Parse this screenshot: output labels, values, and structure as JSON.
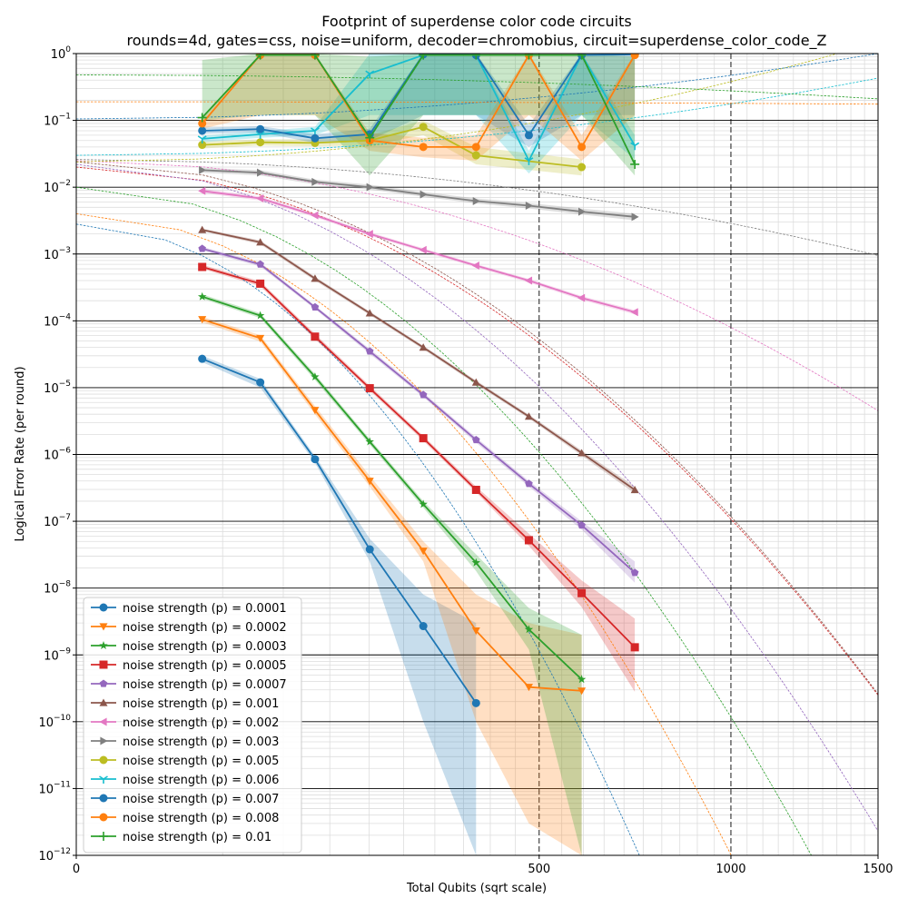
{
  "chart_data": {
    "type": "line",
    "title": "Footprint of superdense color code circuits",
    "subtitle": "rounds=4d, gates=css, noise=uniform, decoder=chromobius, circuit=superdense_color_code_Z",
    "xlabel": "Total Qubits (sqrt scale)",
    "ylabel": "Logical Error Rate (per round)",
    "xscale": "sqrt",
    "yscale": "log",
    "xlim": [
      0,
      1500
    ],
    "ylim": [
      1e-12,
      1
    ],
    "x_ticks": [
      {
        "value": 0,
        "label": "0"
      },
      {
        "value": 500,
        "label": "500"
      },
      {
        "value": 1000,
        "label": "1000"
      },
      {
        "value": 1500,
        "label": "1500"
      }
    ],
    "y_ticks": [
      {
        "exp": 0,
        "base": "10",
        "sup": "0"
      },
      {
        "exp": -1,
        "base": "10",
        "sup": "−1"
      },
      {
        "exp": -2,
        "base": "10",
        "sup": "−2"
      },
      {
        "exp": -3,
        "base": "10",
        "sup": "−3"
      },
      {
        "exp": -4,
        "base": "10",
        "sup": "−4"
      },
      {
        "exp": -5,
        "base": "10",
        "sup": "−5"
      },
      {
        "exp": -6,
        "base": "10",
        "sup": "−6"
      },
      {
        "exp": -7,
        "base": "10",
        "sup": "−7"
      },
      {
        "exp": -8,
        "base": "10",
        "sup": "−8"
      },
      {
        "exp": -9,
        "base": "10",
        "sup": "−9"
      },
      {
        "exp": -10,
        "base": "10",
        "sup": "−10"
      },
      {
        "exp": -11,
        "base": "10",
        "sup": "−11"
      },
      {
        "exp": -12,
        "base": "10",
        "sup": "−12"
      }
    ],
    "grid": true,
    "legend_position": "lower-left",
    "x": [
      37,
      79,
      133,
      201,
      281,
      373,
      478,
      596,
      728
    ],
    "series": [
      {
        "name": "noise strength (p) = 0.0001",
        "color": "#1f77b4",
        "marker": "circle",
        "values": [
          2.7e-05,
          1.2e-05,
          8.5e-07,
          3.8e-08,
          2.7e-09,
          1.9e-10,
          null,
          null,
          null
        ],
        "lower": [
          2.4e-05,
          1e-05,
          7.5e-07,
          2.5e-08,
          1e-10,
          1e-12,
          null,
          null,
          null
        ],
        "upper": [
          3e-05,
          1.35e-05,
          9.5e-07,
          5.5e-08,
          8e-09,
          3e-09,
          null,
          null,
          null
        ],
        "fit": [
          [
            0,
            0.0028
          ],
          [
            740,
            1e-12
          ]
        ]
      },
      {
        "name": "noise strength (p) = 0.0002",
        "color": "#ff7f0e",
        "marker": "triangle-down",
        "values": [
          0.000105,
          5.5e-05,
          4.6e-06,
          4e-07,
          3.6e-08,
          2.3e-09,
          3.3e-10,
          2.9e-10,
          null
        ],
        "lower": [
          9.5e-05,
          4.9e-05,
          4e-06,
          3.3e-07,
          2.5e-08,
          1e-10,
          3e-12,
          1e-12,
          null
        ],
        "upper": [
          0.000115,
          6.1e-05,
          5.3e-06,
          4.8e-07,
          5e-08,
          8e-09,
          3e-09,
          2e-09,
          null
        ],
        "fit": [
          [
            0,
            0.004
          ],
          [
            1001,
            1e-12
          ]
        ]
      },
      {
        "name": "noise strength (p) = 0.0003",
        "color": "#2ca02c",
        "marker": "star",
        "values": [
          0.00023,
          0.00012,
          1.45e-05,
          1.55e-06,
          1.8e-07,
          2.4e-08,
          2.4e-09,
          4.3e-10,
          null
        ],
        "lower": [
          0.000215,
          0.00011,
          1.3e-05,
          1.4e-06,
          1.6e-07,
          1.8e-08,
          1.2e-09,
          1e-12,
          null
        ],
        "upper": [
          0.00025,
          0.00013,
          1.6e-05,
          1.7e-06,
          2e-07,
          3.2e-08,
          5e-09,
          2e-09,
          null
        ],
        "fit": [
          [
            0,
            0.01
          ],
          [
            1261,
            1e-12
          ]
        ]
      },
      {
        "name": "noise strength (p) = 0.0005",
        "color": "#d62728",
        "marker": "square",
        "values": [
          0.00064,
          0.00036,
          5.8e-05,
          9.8e-06,
          1.75e-06,
          2.95e-07,
          5.2e-08,
          8.4e-09,
          1.3e-09
        ],
        "lower": [
          0.0006,
          0.00033,
          5.3e-05,
          9e-06,
          1.6e-06,
          2.7e-07,
          4.3e-08,
          5.2e-09,
          2.8e-10
        ],
        "upper": [
          0.00069,
          0.00039,
          6.4e-05,
          1.07e-05,
          1.9e-06,
          3.3e-07,
          6.5e-08,
          1.3e-08,
          3.5e-09
        ],
        "fit": [
          [
            0,
            0.02
          ],
          [
            1500,
            2.5e-10
          ]
        ]
      },
      {
        "name": "noise strength (p) = 0.0007",
        "color": "#9467bd",
        "marker": "pentagon",
        "values": [
          0.0012,
          0.0007,
          0.00016,
          3.5e-05,
          7.8e-06,
          1.65e-06,
          3.65e-07,
          8.7e-08,
          1.7e-08
        ],
        "lower": [
          0.00112,
          0.00065,
          0.00015,
          3.2e-05,
          7.2e-06,
          1.5e-06,
          3.3e-07,
          7.5e-08,
          1.2e-08
        ],
        "upper": [
          0.00128,
          0.00075,
          0.00017,
          3.8e-05,
          8.4e-06,
          1.8e-06,
          4e-07,
          1e-07,
          2.5e-08
        ],
        "fit": [
          [
            0,
            0.022
          ],
          [
            1500,
            2.3e-12
          ]
        ]
      },
      {
        "name": "noise strength (p) = 0.001",
        "color": "#8c564b",
        "marker": "triangle-up",
        "values": [
          0.0023,
          0.0015,
          0.00043,
          0.00013,
          4e-05,
          1.2e-05,
          3.7e-06,
          1.05e-06,
          2.95e-07
        ],
        "lower": [
          0.0022,
          0.0014,
          0.0004,
          0.000122,
          3.75e-05,
          1.12e-05,
          3.45e-06,
          9.6e-07,
          2.6e-07
        ],
        "upper": [
          0.0024,
          0.0016,
          0.00046,
          0.000138,
          4.25e-05,
          1.28e-05,
          3.95e-06,
          1.15e-06,
          3.3e-07
        ],
        "fit": [
          [
            0,
            0.024
          ],
          [
            1500,
            2.6e-10
          ]
        ]
      },
      {
        "name": "noise strength (p) = 0.002",
        "color": "#e377c2",
        "marker": "triangle-left",
        "values": [
          0.0088,
          0.0068,
          0.0038,
          0.002,
          0.00115,
          0.00067,
          0.0004,
          0.00022,
          0.000135
        ],
        "lower": [
          0.0082,
          0.0063,
          0.00355,
          0.00188,
          0.00108,
          0.00063,
          0.000375,
          0.000205,
          0.000125
        ],
        "upper": [
          0.0095,
          0.0073,
          0.00405,
          0.00212,
          0.00122,
          0.00071,
          0.000425,
          0.000235,
          0.000145
        ],
        "fit": [
          [
            0,
            0.025
          ],
          [
            1500,
            4.5e-06
          ]
        ]
      },
      {
        "name": "noise strength (p) = 0.003",
        "color": "#7f7f7f",
        "marker": "triangle-right",
        "values": [
          0.018,
          0.0165,
          0.012,
          0.01,
          0.0078,
          0.0062,
          0.0053,
          0.0043,
          0.0036
        ],
        "lower": [
          0.0165,
          0.015,
          0.011,
          0.0092,
          0.0072,
          0.0057,
          0.0048,
          0.0039,
          0.0032
        ],
        "upper": [
          0.0195,
          0.018,
          0.013,
          0.0109,
          0.0085,
          0.0068,
          0.0058,
          0.0048,
          0.004
        ],
        "fit": [
          [
            0,
            0.026
          ],
          [
            1500,
            0.00095
          ]
        ]
      },
      {
        "name": "noise strength (p) = 0.005",
        "color": "#bcbd22",
        "marker": "circle",
        "values": [
          0.043,
          0.047,
          0.046,
          0.05,
          0.08,
          0.03,
          null,
          0.02,
          null
        ],
        "lower": [
          0.038,
          0.042,
          0.041,
          0.042,
          0.06,
          0.022,
          null,
          0.015,
          null
        ],
        "upper": [
          0.048,
          0.052,
          0.052,
          0.06,
          0.1,
          0.04,
          null,
          0.026,
          null
        ],
        "fit": [
          [
            0,
            0.024
          ],
          [
            1350,
            1.0
          ]
        ]
      },
      {
        "name": "noise strength (p) = 0.006",
        "color": "#17becf",
        "marker": "tri",
        "values": [
          0.053,
          0.062,
          0.07,
          0.5,
          0.95,
          0.95,
          0.025,
          0.95,
          0.042
        ],
        "lower": [
          0.047,
          0.055,
          0.06,
          0.12,
          0.12,
          0.12,
          0.016,
          0.12,
          0.026
        ],
        "upper": [
          0.059,
          0.069,
          0.08,
          1.0,
          1.0,
          1.0,
          0.035,
          1.0,
          0.06
        ],
        "fit": [
          [
            0,
            0.03
          ],
          [
            1500,
            0.43
          ]
        ]
      },
      {
        "name": "noise strength (p) = 0.007",
        "color": "#1f77b4",
        "marker": "circle",
        "values": [
          0.07,
          0.074,
          0.054,
          0.062,
          0.97,
          0.95,
          0.06,
          0.95,
          0.97
        ],
        "lower": [
          0.063,
          0.066,
          0.046,
          0.05,
          0.12,
          0.12,
          0.04,
          0.12,
          0.12
        ],
        "upper": [
          0.078,
          0.082,
          0.062,
          0.075,
          1.0,
          1.0,
          0.085,
          1.0,
          1.0
        ],
        "fit": [
          [
            0,
            0.105
          ],
          [
            1500,
            1.0
          ]
        ]
      },
      {
        "name": "noise strength (p) = 0.008",
        "color": "#ff7f0e",
        "marker": "circle",
        "values": [
          0.09,
          0.95,
          0.95,
          0.05,
          0.04,
          0.04,
          0.95,
          0.04,
          0.95
        ],
        "lower": [
          0.075,
          0.12,
          0.12,
          0.035,
          0.028,
          0.025,
          0.12,
          0.025,
          0.12
        ],
        "upper": [
          0.105,
          1.0,
          1.0,
          0.065,
          0.055,
          0.06,
          1.0,
          0.06,
          1.0
        ],
        "fit": [
          [
            0,
            0.19
          ],
          [
            1500,
            0.175
          ]
        ]
      },
      {
        "name": "noise strength (p) = 0.01",
        "color": "#2ca02c",
        "marker": "plus",
        "values": [
          0.11,
          0.95,
          0.95,
          0.055,
          0.95,
          0.95,
          0.95,
          0.95,
          0.022
        ],
        "lower": [
          0.1,
          0.12,
          0.12,
          0.015,
          0.12,
          0.12,
          0.12,
          0.12,
          0.015
        ],
        "upper": [
          0.8,
          1.0,
          1.0,
          0.9,
          1.0,
          1.0,
          1.0,
          1.0,
          0.9
        ],
        "fit": [
          [
            0,
            0.48
          ],
          [
            1500,
            0.21
          ]
        ]
      }
    ]
  }
}
